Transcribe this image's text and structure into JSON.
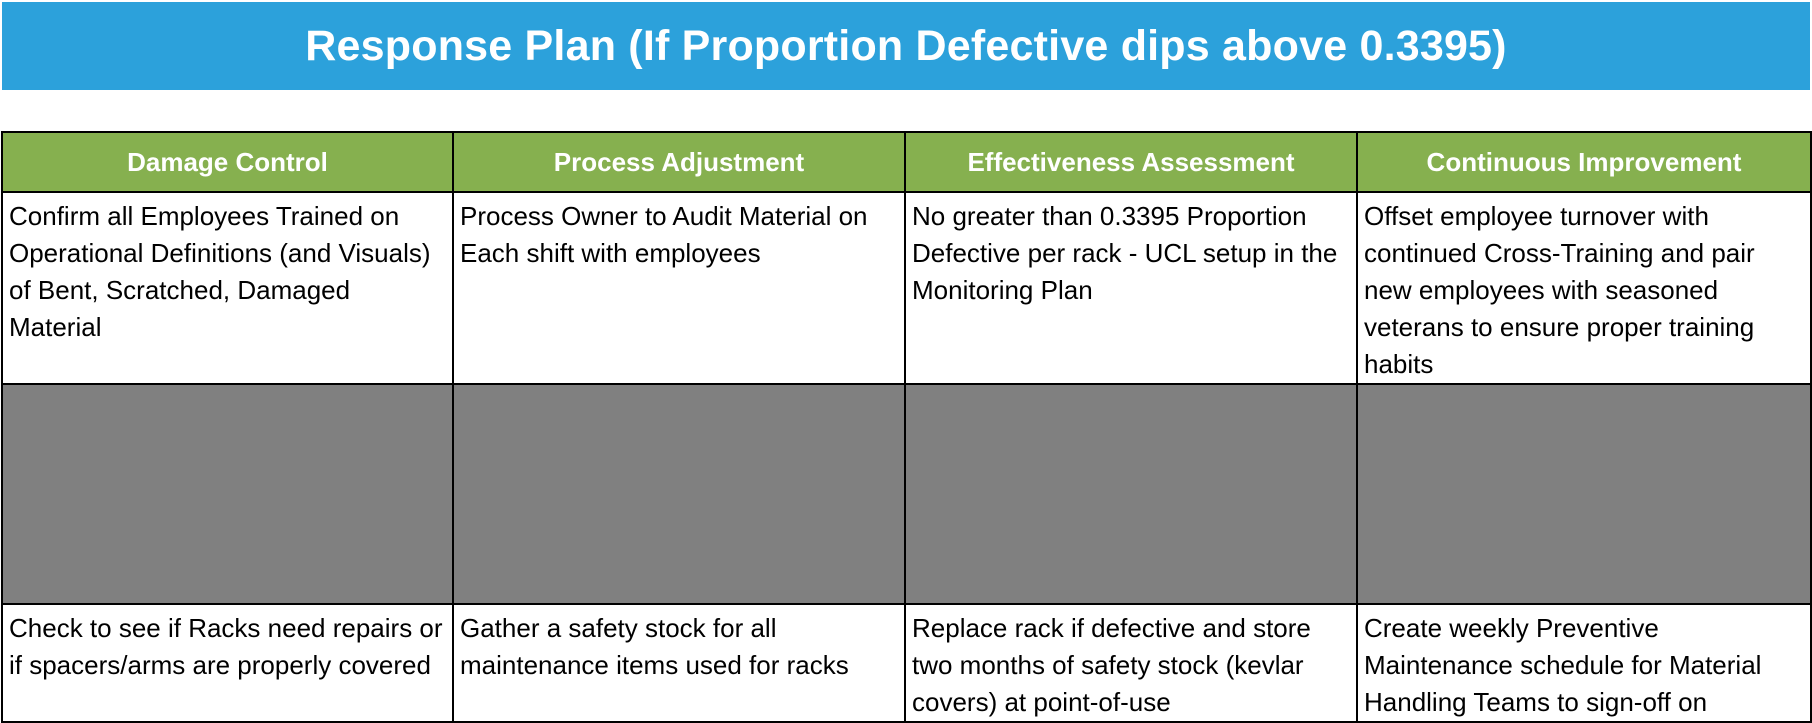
{
  "title": "Response Plan (If Proportion Defective dips above 0.3395)",
  "colors": {
    "title_bar": "#2ca1db",
    "header_row": "#86b04f",
    "blocked_row": "#808080"
  },
  "table": {
    "headers": [
      "Damage Control",
      "Process Adjustment",
      "Effectiveness Assessment",
      "Continuous Improvement"
    ],
    "rows": [
      [
        "Confirm all Employees Trained on Operational Definitions (and Visuals) of Bent, Scratched, Damaged Material",
        "Process Owner to Audit Material on Each shift with employees",
        "No greater than 0.3395 Proportion Defective per rack - UCL setup in the Monitoring Plan",
        "Offset employee turnover with continued Cross-Training and pair new employees with seasoned veterans to ensure proper training habits"
      ],
      [
        "Check to see if Racks need repairs or if spacers/arms are properly covered",
        "Gather a safety stock for all maintenance items used for racks",
        "Replace rack if defective and store two months of safety stock (kevlar covers) at point-of-use",
        "Create weekly Preventive Maintenance schedule for Material Handling Teams to sign-off on"
      ]
    ]
  }
}
